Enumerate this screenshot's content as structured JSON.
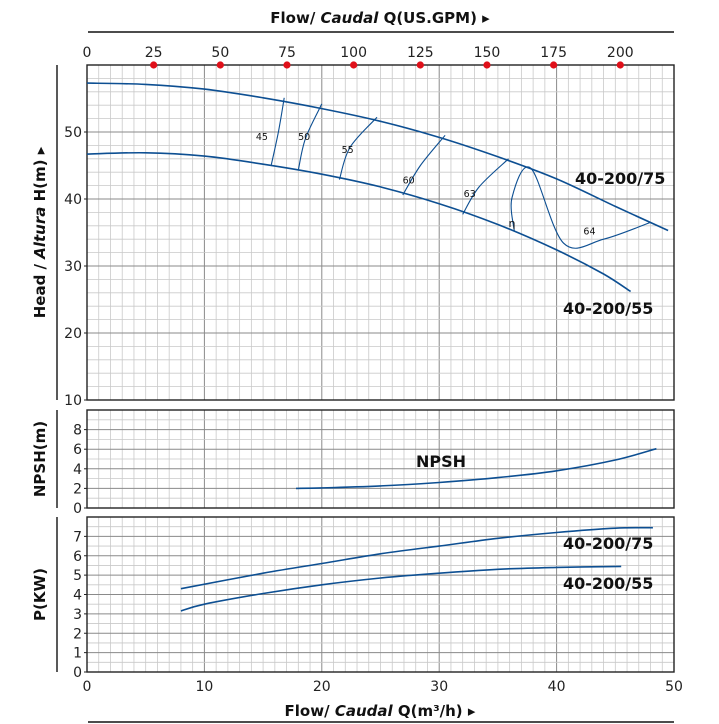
{
  "chart_data": {
    "type": "line",
    "top_axis": {
      "label_parts": [
        "Flow/ ",
        "Caudal",
        " Q(US.GPM)",
        " ▸"
      ],
      "ticks": [
        0,
        25,
        50,
        75,
        100,
        125,
        150,
        175,
        200
      ],
      "marker_color": "#e0101a"
    },
    "bottom_axis": {
      "label_parts": [
        "Flow/ ",
        "Caudal",
        " Q(m³/h)",
        " ▸"
      ],
      "ticks": [
        0,
        10,
        20,
        30,
        40,
        50
      ],
      "xlim": [
        0,
        50
      ]
    },
    "line_color": "#0d4f92",
    "panels": [
      {
        "id": "head",
        "ylabel_parts": [
          "Head",
          " / ",
          "Altura",
          " H(m) ▸"
        ],
        "ylim": [
          10,
          60
        ],
        "yticks": [
          10,
          20,
          30,
          40,
          50
        ],
        "series": [
          {
            "name": "40-200/75",
            "x": [
              0,
              5,
              10,
              15,
              20,
              25,
              30,
              35,
              40,
              45,
              49.5
            ],
            "y": [
              57.3,
              57.1,
              56.4,
              55.1,
              53.5,
              51.6,
              49.2,
              46.3,
              43.0,
              38.9,
              35.3
            ]
          },
          {
            "name": "40-200/55",
            "x": [
              0,
              5,
              10,
              15,
              20,
              25,
              30,
              35,
              40,
              44,
              46.3
            ],
            "y": [
              46.7,
              46.9,
              46.4,
              45.2,
              43.7,
              41.8,
              39.3,
              36.2,
              32.4,
              28.8,
              26.2
            ]
          }
        ],
        "efficiency_label": "η",
        "efficiency_contours": [
          {
            "label": "45",
            "x": [
              15.7,
              16.3,
              16.8
            ],
            "y": [
              45.1,
              50.0,
              55.1
            ]
          },
          {
            "label": "50",
            "x": [
              18.0,
              18.6,
              20.0
            ],
            "y": [
              44.3,
              49.0,
              54.2
            ]
          },
          {
            "label": "55",
            "x": [
              21.5,
              22.4,
              24.7
            ],
            "y": [
              42.9,
              47.7,
              52.2
            ]
          },
          {
            "label": "60",
            "x": [
              26.9,
              28.4,
              30.5
            ],
            "y": [
              40.6,
              45.0,
              49.5
            ]
          },
          {
            "label": "63",
            "x": [
              32.0,
              33.4,
              35.9
            ],
            "y": [
              37.7,
              41.8,
              46.0
            ]
          },
          {
            "label": "64",
            "x": [
              36.4,
              36.2,
              37.8,
              40.6,
              44.0,
              48.0
            ],
            "y": [
              35.2,
              40.2,
              44.6,
              33.4,
              34.0,
              36.5
            ]
          }
        ]
      },
      {
        "id": "npsh",
        "ylabel_parts": [
          "NPSH(m)"
        ],
        "ylim": [
          0,
          10
        ],
        "yticks": [
          0,
          2,
          4,
          6,
          8
        ],
        "series": [
          {
            "name": "NPSH",
            "x": [
              17.8,
              20,
              25,
              30,
              35,
              40,
              45,
              48.5
            ],
            "y": [
              2.0,
              2.05,
              2.25,
              2.6,
              3.1,
              3.8,
              4.9,
              6.05
            ]
          }
        ]
      },
      {
        "id": "power",
        "ylabel_parts": [
          "P(KW)"
        ],
        "ylim": [
          0,
          8
        ],
        "yticks": [
          0,
          1,
          2,
          3,
          4,
          5,
          6,
          7
        ],
        "series": [
          {
            "name": "40-200/75",
            "x": [
              8,
              15,
              20,
              25,
              30,
              35,
              40,
              45,
              48.2
            ],
            "y": [
              4.3,
              5.1,
              5.6,
              6.1,
              6.5,
              6.9,
              7.2,
              7.42,
              7.45
            ]
          },
          {
            "name": "40-200/55",
            "x": [
              8,
              10,
              15,
              20,
              25,
              30,
              35,
              40,
              45.5
            ],
            "y": [
              3.15,
              3.5,
              4.05,
              4.5,
              4.85,
              5.1,
              5.3,
              5.4,
              5.45
            ]
          }
        ]
      }
    ],
    "annotations": [
      {
        "text": "40-200/75",
        "panel": "head"
      },
      {
        "text": "40-200/55",
        "panel": "head"
      },
      {
        "text": "NPSH",
        "panel": "npsh"
      },
      {
        "text": "40-200/75",
        "panel": "power"
      },
      {
        "text": "40-200/55",
        "panel": "power"
      }
    ]
  }
}
